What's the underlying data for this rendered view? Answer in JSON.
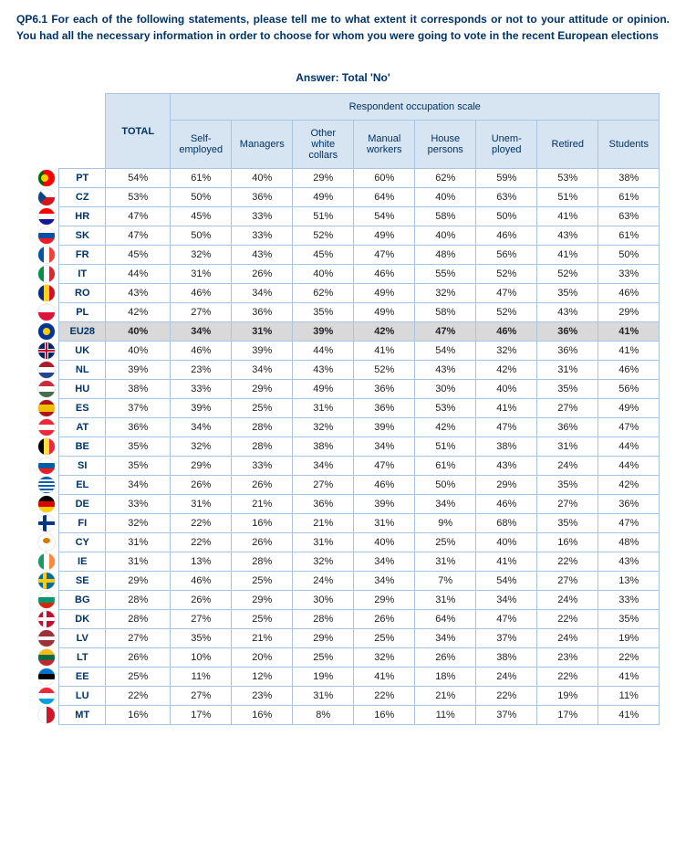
{
  "question": "QP6.1 For each of the following statements, please tell me to what extent it corresponds or not to your attitude or opinion.\nYou had all the necessary information in order to choose for whom you were going to vote in the recent European elections",
  "answer_title": "Answer: Total 'No'",
  "headers": {
    "total": "TOTAL",
    "occupation_group": "Respondent occupation scale",
    "columns": [
      "Self-employed",
      "Managers",
      "Other white collars",
      "Manual workers",
      "House persons",
      "Unem-ployed",
      "Retired",
      "Students"
    ]
  },
  "colors": {
    "header_bg": "#d7e4f2",
    "border": "#a9c4e0",
    "text_heading": "#003366",
    "eu_row_bg": "#d9d9d9"
  },
  "rows": [
    {
      "code": "PT",
      "values": [
        "54%",
        "61%",
        "40%",
        "29%",
        "60%",
        "62%",
        "59%",
        "53%",
        "38%"
      ]
    },
    {
      "code": "CZ",
      "values": [
        "53%",
        "50%",
        "36%",
        "49%",
        "64%",
        "40%",
        "63%",
        "51%",
        "61%"
      ]
    },
    {
      "code": "HR",
      "values": [
        "47%",
        "45%",
        "33%",
        "51%",
        "54%",
        "58%",
        "50%",
        "41%",
        "63%"
      ]
    },
    {
      "code": "SK",
      "values": [
        "47%",
        "50%",
        "33%",
        "52%",
        "49%",
        "40%",
        "46%",
        "43%",
        "61%"
      ]
    },
    {
      "code": "FR",
      "values": [
        "45%",
        "32%",
        "43%",
        "45%",
        "47%",
        "48%",
        "56%",
        "41%",
        "50%"
      ]
    },
    {
      "code": "IT",
      "values": [
        "44%",
        "31%",
        "26%",
        "40%",
        "46%",
        "55%",
        "52%",
        "52%",
        "33%"
      ]
    },
    {
      "code": "RO",
      "values": [
        "43%",
        "46%",
        "34%",
        "62%",
        "49%",
        "32%",
        "47%",
        "35%",
        "46%"
      ]
    },
    {
      "code": "PL",
      "values": [
        "42%",
        "27%",
        "36%",
        "35%",
        "49%",
        "58%",
        "52%",
        "43%",
        "29%"
      ]
    },
    {
      "code": "EU28",
      "values": [
        "40%",
        "34%",
        "31%",
        "39%",
        "42%",
        "47%",
        "46%",
        "36%",
        "41%"
      ],
      "highlight": true
    },
    {
      "code": "UK",
      "values": [
        "40%",
        "46%",
        "39%",
        "44%",
        "41%",
        "54%",
        "32%",
        "36%",
        "41%"
      ]
    },
    {
      "code": "NL",
      "values": [
        "39%",
        "23%",
        "34%",
        "43%",
        "52%",
        "43%",
        "42%",
        "31%",
        "46%"
      ]
    },
    {
      "code": "HU",
      "values": [
        "38%",
        "33%",
        "29%",
        "49%",
        "36%",
        "30%",
        "40%",
        "35%",
        "56%"
      ]
    },
    {
      "code": "ES",
      "values": [
        "37%",
        "39%",
        "25%",
        "31%",
        "36%",
        "53%",
        "41%",
        "27%",
        "49%"
      ]
    },
    {
      "code": "AT",
      "values": [
        "36%",
        "34%",
        "28%",
        "32%",
        "39%",
        "42%",
        "47%",
        "36%",
        "47%"
      ]
    },
    {
      "code": "BE",
      "values": [
        "35%",
        "32%",
        "28%",
        "38%",
        "34%",
        "51%",
        "38%",
        "31%",
        "44%"
      ]
    },
    {
      "code": "SI",
      "values": [
        "35%",
        "29%",
        "33%",
        "34%",
        "47%",
        "61%",
        "43%",
        "24%",
        "44%"
      ]
    },
    {
      "code": "EL",
      "values": [
        "34%",
        "26%",
        "26%",
        "27%",
        "46%",
        "50%",
        "29%",
        "35%",
        "42%"
      ]
    },
    {
      "code": "DE",
      "values": [
        "33%",
        "31%",
        "21%",
        "36%",
        "39%",
        "34%",
        "46%",
        "27%",
        "36%"
      ]
    },
    {
      "code": "FI",
      "values": [
        "32%",
        "22%",
        "16%",
        "21%",
        "31%",
        "9%",
        "68%",
        "35%",
        "47%"
      ]
    },
    {
      "code": "CY",
      "values": [
        "31%",
        "22%",
        "26%",
        "31%",
        "40%",
        "25%",
        "40%",
        "16%",
        "48%"
      ]
    },
    {
      "code": "IE",
      "values": [
        "31%",
        "13%",
        "28%",
        "32%",
        "34%",
        "31%",
        "41%",
        "22%",
        "43%"
      ]
    },
    {
      "code": "SE",
      "values": [
        "29%",
        "46%",
        "25%",
        "24%",
        "34%",
        "7%",
        "54%",
        "27%",
        "13%"
      ]
    },
    {
      "code": "BG",
      "values": [
        "28%",
        "26%",
        "29%",
        "30%",
        "29%",
        "31%",
        "34%",
        "24%",
        "33%"
      ]
    },
    {
      "code": "DK",
      "values": [
        "28%",
        "27%",
        "25%",
        "28%",
        "26%",
        "64%",
        "47%",
        "22%",
        "35%"
      ]
    },
    {
      "code": "LV",
      "values": [
        "27%",
        "35%",
        "21%",
        "29%",
        "25%",
        "34%",
        "37%",
        "24%",
        "19%"
      ]
    },
    {
      "code": "LT",
      "values": [
        "26%",
        "10%",
        "20%",
        "25%",
        "32%",
        "26%",
        "38%",
        "23%",
        "22%"
      ]
    },
    {
      "code": "EE",
      "values": [
        "25%",
        "11%",
        "12%",
        "19%",
        "41%",
        "18%",
        "24%",
        "22%",
        "41%"
      ]
    },
    {
      "code": "LU",
      "values": [
        "22%",
        "27%",
        "23%",
        "31%",
        "22%",
        "21%",
        "22%",
        "19%",
        "11%"
      ]
    },
    {
      "code": "MT",
      "values": [
        "16%",
        "17%",
        "16%",
        "8%",
        "16%",
        "11%",
        "37%",
        "17%",
        "41%"
      ]
    }
  ],
  "flags": {
    "PT": [
      [
        "#006600",
        "0 0 6px 18px"
      ],
      [
        "#ff0000",
        "6px 0 12px 18px"
      ],
      [
        "#ffcc00",
        "3px 5px 8px 8px R"
      ]
    ],
    "CZ": [
      [
        "#ffffff",
        "0 0 18px 9px"
      ],
      [
        "#d7141a",
        "0 9px 18px 9px"
      ],
      [
        "#11457e",
        "0 0 9px 18px T"
      ]
    ],
    "HR": [
      [
        "#ff0000",
        "0 0 18px 6px"
      ],
      [
        "#ffffff",
        "0 6px 18px 6px"
      ],
      [
        "#171796",
        "0 12px 18px 6px"
      ]
    ],
    "SK": [
      [
        "#ffffff",
        "0 0 18px 6px"
      ],
      [
        "#0b4ea2",
        "0 6px 18px 6px"
      ],
      [
        "#ee1c25",
        "0 12px 18px 6px"
      ]
    ],
    "FR": [
      [
        "#0055a4",
        "0 0 6px 18px"
      ],
      [
        "#ffffff",
        "6px 0 6px 18px"
      ],
      [
        "#ef4135",
        "12px 0 6px 18px"
      ]
    ],
    "IT": [
      [
        "#009246",
        "0 0 6px 18px"
      ],
      [
        "#ffffff",
        "6px 0 6px 18px"
      ],
      [
        "#ce2b37",
        "12px 0 6px 18px"
      ]
    ],
    "RO": [
      [
        "#002b7f",
        "0 0 6px 18px"
      ],
      [
        "#fcd116",
        "6px 0 6px 18px"
      ],
      [
        "#ce1126",
        "12px 0 6px 18px"
      ]
    ],
    "PL": [
      [
        "#ffffff",
        "0 0 18px 9px"
      ],
      [
        "#dc143c",
        "0 9px 18px 9px"
      ]
    ],
    "EU28": [
      [
        "#003399",
        "0 0 18px 18px"
      ],
      [
        "#ffcc00",
        "5px 5px 8px 8px R"
      ]
    ],
    "UK": [
      [
        "#012169",
        "0 0 18px 18px"
      ],
      [
        "#ffffff",
        "0 7px 18px 4px"
      ],
      [
        "#ffffff",
        "7px 0 4px 18px"
      ],
      [
        "#c8102e",
        "0 8px 18px 2px"
      ],
      [
        "#c8102e",
        "8px 0 2px 18px"
      ]
    ],
    "NL": [
      [
        "#ae1c28",
        "0 0 18px 6px"
      ],
      [
        "#ffffff",
        "0 6px 18px 6px"
      ],
      [
        "#21468b",
        "0 12px 18px 6px"
      ]
    ],
    "HU": [
      [
        "#cd2a3e",
        "0 0 18px 6px"
      ],
      [
        "#ffffff",
        "0 6px 18px 6px"
      ],
      [
        "#436f4d",
        "0 12px 18px 6px"
      ]
    ],
    "ES": [
      [
        "#aa151b",
        "0 0 18px 5px"
      ],
      [
        "#f1bf00",
        "0 5px 18px 8px"
      ],
      [
        "#aa151b",
        "0 13px 18px 5px"
      ]
    ],
    "AT": [
      [
        "#ed2939",
        "0 0 18px 6px"
      ],
      [
        "#ffffff",
        "0 6px 18px 6px"
      ],
      [
        "#ed2939",
        "0 12px 18px 6px"
      ]
    ],
    "BE": [
      [
        "#000000",
        "0 0 6px 18px"
      ],
      [
        "#fae042",
        "6px 0 6px 18px"
      ],
      [
        "#ed2939",
        "12px 0 6px 18px"
      ]
    ],
    "SI": [
      [
        "#ffffff",
        "0 0 18px 6px"
      ],
      [
        "#005da4",
        "0 6px 18px 6px"
      ],
      [
        "#ed1c24",
        "0 12px 18px 6px"
      ]
    ],
    "EL": [
      [
        "#0d5eaf",
        "0 0 18px 18px"
      ],
      [
        "#ffffff",
        "0 3px 18px 2px"
      ],
      [
        "#ffffff",
        "0 7px 18px 2px"
      ],
      [
        "#ffffff",
        "0 11px 18px 2px"
      ],
      [
        "#ffffff",
        "0 15px 18px 2px"
      ]
    ],
    "DE": [
      [
        "#000000",
        "0 0 18px 6px"
      ],
      [
        "#dd0000",
        "0 6px 18px 6px"
      ],
      [
        "#ffce00",
        "0 12px 18px 6px"
      ]
    ],
    "FI": [
      [
        "#ffffff",
        "0 0 18px 18px"
      ],
      [
        "#003580",
        "0 7px 18px 4px"
      ],
      [
        "#003580",
        "5px 0 4px 18px"
      ]
    ],
    "CY": [
      [
        "#ffffff",
        "0 0 18px 18px"
      ],
      [
        "#d57800",
        "5px 4px 8px 6px R"
      ]
    ],
    "IE": [
      [
        "#169b62",
        "0 0 6px 18px"
      ],
      [
        "#ffffff",
        "6px 0 6px 18px"
      ],
      [
        "#ff883e",
        "12px 0 6px 18px"
      ]
    ],
    "SE": [
      [
        "#006aa7",
        "0 0 18px 18px"
      ],
      [
        "#fecc00",
        "0 7px 18px 4px"
      ],
      [
        "#fecc00",
        "5px 0 4px 18px"
      ]
    ],
    "BG": [
      [
        "#ffffff",
        "0 0 18px 6px"
      ],
      [
        "#00966e",
        "0 6px 18px 6px"
      ],
      [
        "#d62612",
        "0 12px 18px 6px"
      ]
    ],
    "DK": [
      [
        "#c60c30",
        "0 0 18px 18px"
      ],
      [
        "#ffffff",
        "0 7px 18px 4px"
      ],
      [
        "#ffffff",
        "5px 0 4px 18px"
      ]
    ],
    "LV": [
      [
        "#9e3039",
        "0 0 18px 7px"
      ],
      [
        "#ffffff",
        "0 7px 18px 4px"
      ],
      [
        "#9e3039",
        "0 11px 18px 7px"
      ]
    ],
    "LT": [
      [
        "#fdb913",
        "0 0 18px 6px"
      ],
      [
        "#006a44",
        "0 6px 18px 6px"
      ],
      [
        "#c1272d",
        "0 12px 18px 6px"
      ]
    ],
    "EE": [
      [
        "#0072ce",
        "0 0 18px 6px"
      ],
      [
        "#000000",
        "0 6px 18px 6px"
      ],
      [
        "#ffffff",
        "0 12px 18px 6px"
      ]
    ],
    "LU": [
      [
        "#ed2939",
        "0 0 18px 6px"
      ],
      [
        "#ffffff",
        "0 6px 18px 6px"
      ],
      [
        "#00a1de",
        "0 12px 18px 6px"
      ]
    ],
    "MT": [
      [
        "#ffffff",
        "0 0 9px 18px"
      ],
      [
        "#cf142b",
        "9px 0 9px 18px"
      ]
    ]
  }
}
